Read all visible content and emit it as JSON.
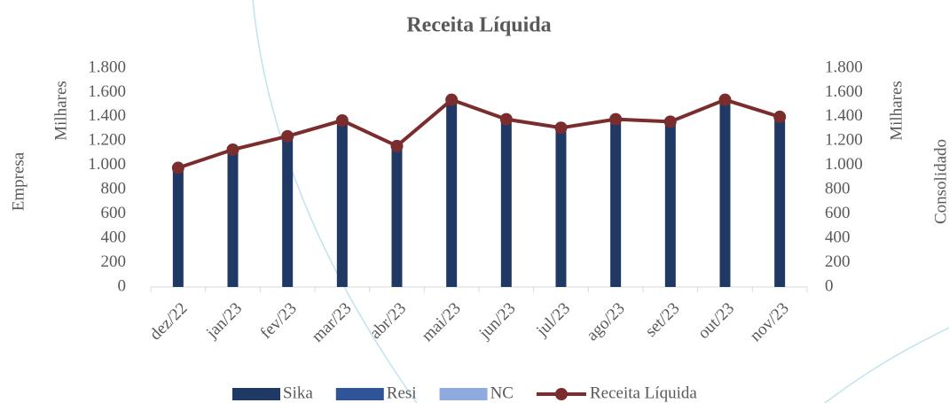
{
  "chart_data": {
    "type": "bar",
    "title": "Receita Líquida",
    "y_label": "Empresa",
    "y_unit": "Milhares",
    "y2_label": "Consolidado",
    "y2_unit": "Milhares",
    "categories": [
      "dez/22",
      "jan/23",
      "fev/23",
      "mar/23",
      "abr/23",
      "mai/23",
      "jun/23",
      "jul/23",
      "ago/23",
      "set/23",
      "out/23",
      "nov/23"
    ],
    "series": [
      {
        "name": "Sika",
        "type": "bar",
        "color": "#1f3864",
        "values": [
          980,
          1130,
          1230,
          1360,
          1160,
          1540,
          1380,
          1310,
          1380,
          1350,
          1540,
          1390
        ]
      },
      {
        "name": "Resi",
        "type": "bar",
        "color": "#2f5597",
        "values": [
          0,
          0,
          0,
          0,
          0,
          0,
          0,
          0,
          0,
          0,
          0,
          0
        ]
      },
      {
        "name": "NC",
        "type": "bar",
        "color": "#8faadc",
        "values": [
          0,
          0,
          0,
          0,
          0,
          0,
          0,
          0,
          0,
          0,
          0,
          0
        ]
      },
      {
        "name": "Receita Líquida",
        "type": "line",
        "axis": "y2",
        "color": "#7b2c2c",
        "values": [
          980,
          1130,
          1240,
          1370,
          1160,
          1540,
          1380,
          1310,
          1380,
          1360,
          1540,
          1400
        ]
      }
    ],
    "ylim": [
      0,
      1800
    ],
    "yticks": [
      0,
      200,
      400,
      600,
      800,
      {
        "value": 1000,
        "label": "1.000"
      },
      {
        "value": 1200,
        "label": "1.200"
      },
      {
        "value": 1400,
        "label": "1.400"
      },
      {
        "value": 1600,
        "label": "1.600"
      },
      {
        "value": 1800,
        "label": "1.800"
      }
    ],
    "y2lim": [
      0,
      1800
    ],
    "y2ticks": [
      0,
      200,
      400,
      600,
      800,
      {
        "value": 1000,
        "label": "1.000"
      },
      {
        "value": 1200,
        "label": "1.200"
      },
      {
        "value": 1400,
        "label": "1.400"
      },
      {
        "value": 1600,
        "label": "1.600"
      },
      {
        "value": 1800,
        "label": "1.800"
      }
    ],
    "grid": false,
    "legend": "bottom"
  }
}
